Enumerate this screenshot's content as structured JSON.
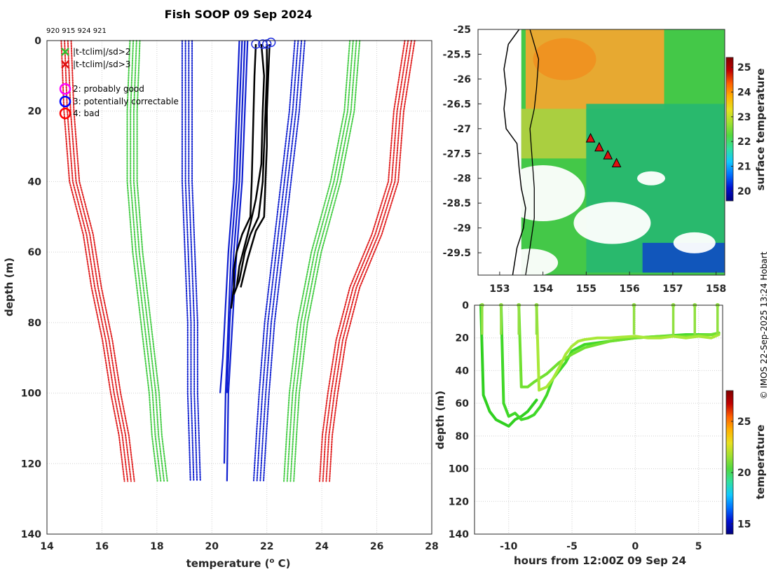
{
  "title": "Fish SOOP 09 Sep 2024",
  "profile_ids": "920 915 924 921",
  "credit": "© IMOS 22-Sep-2025 13:24 Hobart",
  "colors": {
    "red": "#e02020",
    "green": "#44cc44",
    "blue": "#1020d0",
    "black": "#000000",
    "magenta": "#ff00ff"
  },
  "legend": [
    {
      "symbol": "x",
      "color": "#30c030",
      "label": "|t-tclim|/sd>2"
    },
    {
      "symbol": "x",
      "color": "#e01010",
      "label": "|t-tclim|/sd>3"
    },
    {
      "symbol": "o",
      "color": "#ff00ff",
      "label": "2: probably good"
    },
    {
      "symbol": "o",
      "color": "#0000ff",
      "label": "3: potentially correctable"
    },
    {
      "symbol": "o",
      "color": "#ff0000",
      "label": "4: bad"
    }
  ],
  "chart_data": [
    {
      "id": "profiles",
      "type": "line",
      "xlabel": "temperature (",
      "xlabel_sup": "o",
      "xlabel_end": " C)",
      "ylabel": "depth (m)",
      "xlim": [
        14,
        28
      ],
      "ylim": [
        0,
        140
      ],
      "x_ticks": [
        14,
        16,
        18,
        20,
        22,
        24,
        26,
        28
      ],
      "y_ticks": [
        0,
        20,
        40,
        60,
        80,
        100,
        120,
        140
      ],
      "grid": true,
      "climatology_series": [
        {
          "name": "clim -3sd",
          "color": "#e02020",
          "style": "dotted",
          "depth": [
            0,
            20,
            40,
            55,
            70,
            85,
            100,
            112,
            125
          ],
          "temp": [
            14.7,
            14.8,
            15.0,
            15.5,
            15.8,
            16.2,
            16.5,
            16.8,
            17.0
          ]
        },
        {
          "name": "clim -2sd",
          "color": "#44cc44",
          "style": "dotted",
          "depth": [
            0,
            20,
            40,
            60,
            80,
            100,
            112,
            125
          ],
          "temp": [
            17.2,
            17.1,
            17.1,
            17.3,
            17.6,
            17.9,
            18.0,
            18.2
          ]
        },
        {
          "name": "clim -1sd",
          "color": "#1020d0",
          "style": "dotted",
          "depth": [
            0,
            20,
            40,
            60,
            80,
            100,
            112,
            125
          ],
          "temp": [
            19.1,
            19.1,
            19.1,
            19.2,
            19.3,
            19.3,
            19.35,
            19.4
          ]
        },
        {
          "name": "clim +1sd",
          "color": "#1020d0",
          "style": "dotted",
          "depth": [
            0,
            20,
            40,
            60,
            80,
            100,
            112,
            125
          ],
          "temp": [
            23.2,
            23.0,
            22.7,
            22.4,
            22.1,
            21.9,
            21.8,
            21.7
          ]
        },
        {
          "name": "clim +2sd",
          "color": "#44cc44",
          "style": "dotted",
          "depth": [
            0,
            20,
            40,
            60,
            80,
            100,
            112,
            125
          ],
          "temp": [
            25.2,
            25.0,
            24.5,
            23.8,
            23.3,
            23.0,
            22.9,
            22.8
          ]
        },
        {
          "name": "clim +3sd",
          "color": "#e02020",
          "style": "dotted",
          "depth": [
            0,
            10,
            20,
            40,
            55,
            70,
            85,
            100,
            112,
            125
          ],
          "temp": [
            27.2,
            27.0,
            26.8,
            26.6,
            26.0,
            25.2,
            24.7,
            24.4,
            24.2,
            24.1
          ]
        }
      ],
      "mean_series": [
        {
          "name": "mean 1",
          "color": "#1020d0",
          "depth": [
            0,
            20,
            40,
            60,
            75,
            90,
            100
          ],
          "temp": [
            21.0,
            20.9,
            20.8,
            20.6,
            20.5,
            20.4,
            20.3
          ]
        },
        {
          "name": "mean 2",
          "color": "#1020d0",
          "depth": [
            0,
            20,
            40,
            60,
            80,
            100,
            120
          ],
          "temp": [
            21.1,
            21.0,
            20.9,
            20.7,
            20.6,
            20.5,
            20.45
          ]
        },
        {
          "name": "mean 3",
          "color": "#1020d0",
          "depth": [
            0,
            20,
            40,
            60,
            80,
            100
          ],
          "temp": [
            21.2,
            21.1,
            21.0,
            20.8,
            20.65,
            20.55
          ]
        },
        {
          "name": "mean 4",
          "color": "#1020d0",
          "depth": [
            0,
            20,
            40,
            60,
            80,
            100,
            125
          ],
          "temp": [
            21.3,
            21.2,
            21.1,
            20.9,
            20.75,
            20.6,
            20.55
          ]
        }
      ],
      "observed_series": [
        {
          "name": "profile 920",
          "color": "#000000",
          "depth": [
            1,
            10,
            25,
            40,
            50,
            55,
            60,
            65,
            70,
            76
          ],
          "temp": [
            21.6,
            21.55,
            21.5,
            21.45,
            21.4,
            21.1,
            20.9,
            20.8,
            20.8,
            20.7
          ]
        },
        {
          "name": "profile 915",
          "color": "#000000",
          "depth": [
            1,
            10,
            20,
            35,
            45,
            52,
            58,
            64,
            70
          ],
          "temp": [
            21.8,
            21.9,
            21.85,
            21.8,
            21.6,
            21.4,
            21.2,
            21.0,
            20.9
          ]
        },
        {
          "name": "profile 924",
          "color": "#000000",
          "depth": [
            1,
            10,
            20,
            30,
            40,
            50,
            55,
            60,
            68,
            72
          ],
          "temp": [
            22.0,
            22.0,
            21.95,
            21.9,
            21.85,
            21.7,
            21.4,
            21.2,
            21.0,
            20.8
          ]
        },
        {
          "name": "profile 921",
          "color": "#000000",
          "depth": [
            1,
            10,
            20,
            30,
            40,
            50,
            54,
            62,
            70
          ],
          "temp": [
            22.1,
            22.05,
            22.0,
            22.0,
            21.95,
            21.9,
            21.6,
            21.3,
            21.05
          ]
        }
      ],
      "qc_flags": [
        {
          "temp": 21.6,
          "depth": 1,
          "flag": "3"
        },
        {
          "temp": 21.85,
          "depth": 1,
          "flag": "3"
        },
        {
          "temp": 22.0,
          "depth": 1,
          "flag": "3"
        },
        {
          "temp": 22.15,
          "depth": 0.5,
          "flag": "3"
        }
      ]
    },
    {
      "id": "sst-map",
      "type": "heatmap",
      "xlim": [
        152.5,
        158.2
      ],
      "ylim": [
        -29.95,
        -25
      ],
      "x_ticks": [
        153,
        154,
        155,
        156,
        157,
        158
      ],
      "y_ticks": [
        -25,
        -25.5,
        -26,
        -26.5,
        -27,
        -27.5,
        -28,
        -28.5,
        -29,
        -29.5
      ],
      "colorbar_label": "surface temperature",
      "colorbar_ticks": [
        20,
        21,
        22,
        23,
        24,
        25
      ],
      "colorbar_range": [
        19.6,
        25.4
      ],
      "regions": [
        {
          "name": "warm north",
          "color": "#f0a830",
          "lon": [
            153.6,
            156.8
          ],
          "lat": [
            -25,
            -26.6
          ]
        },
        {
          "name": "mid",
          "color": "#b0d040",
          "lon": [
            153.5,
            155.0
          ],
          "lat": [
            -26.6,
            -27.6
          ]
        },
        {
          "name": "cool southeast",
          "color": "#28b870",
          "lon": [
            155.0,
            158.2
          ],
          "lat": [
            -26.5,
            -29.9
          ]
        },
        {
          "name": "cold south",
          "color": "#1050c0",
          "lon": [
            156.3,
            158.2
          ],
          "lat": [
            -29.3,
            -29.9
          ]
        }
      ],
      "drop_locations": [
        {
          "lon": 155.1,
          "lat": -27.2
        },
        {
          "lon": 155.3,
          "lat": -27.38
        },
        {
          "lon": 155.5,
          "lat": -27.54
        },
        {
          "lon": 155.7,
          "lat": -27.7
        }
      ]
    },
    {
      "id": "depth-time",
      "type": "scatter",
      "xlabel": "hours from 12:00Z 09 Sep 24",
      "ylabel": "depth (m)",
      "xlim": [
        -12.7,
        6.9
      ],
      "ylim": [
        0,
        140
      ],
      "x_ticks": [
        -10,
        -5,
        0,
        5
      ],
      "y_ticks": [
        0,
        20,
        40,
        60,
        80,
        100,
        120,
        140
      ],
      "colorbar_label": "temperature",
      "colorbar_ticks": [
        15,
        20,
        25
      ],
      "colorbar_range": [
        14,
        28
      ],
      "tracks": [
        {
          "name": "dive 1",
          "color": "#30d020",
          "hours": [
            -12.2,
            -12.0,
            -11.5,
            -11.0,
            -10.5,
            -10.0,
            -9.5,
            -9.0,
            -8.5,
            -8.0,
            -7.8
          ],
          "depth": [
            0,
            55,
            65,
            70,
            72,
            74,
            70,
            68,
            65,
            60,
            58
          ]
        },
        {
          "name": "dive 2",
          "color": "#40d828",
          "hours": [
            -10.6,
            -10.4,
            -10.0,
            -9.5,
            -9.0,
            -8.5,
            -8.0,
            -7.5,
            -7.0,
            -6.5,
            -6.0,
            -5.5,
            -5.0,
            -4.0,
            -2.0,
            0,
            2,
            4,
            6,
            6.6
          ],
          "depth": [
            0,
            60,
            68,
            66,
            70,
            69,
            67,
            62,
            55,
            45,
            40,
            35,
            28,
            24,
            22,
            20,
            19,
            18,
            18,
            17
          ]
        },
        {
          "name": "dive 3",
          "color": "#70e030",
          "hours": [
            -9.2,
            -9.0,
            -8.5,
            -8.0,
            -7.0,
            -6.0,
            -5.0,
            -4.0,
            -3.0,
            -2.0,
            0,
            2,
            4,
            6,
            6.6
          ],
          "depth": [
            0,
            50,
            50,
            47,
            42,
            35,
            30,
            26,
            24,
            22,
            20,
            19,
            19,
            18,
            17
          ]
        },
        {
          "name": "dive 4",
          "color": "#a8e838",
          "hours": [
            -7.8,
            -7.6,
            -7.0,
            -6.5,
            -6.0,
            -5.5,
            -5.0,
            -4.5,
            -4.0,
            -3.0,
            -2.0,
            0,
            1,
            2,
            3,
            4,
            5,
            6,
            6.6
          ],
          "depth": [
            0,
            52,
            50,
            45,
            38,
            30,
            25,
            22,
            21,
            20,
            20,
            19,
            20,
            20,
            19,
            20,
            19,
            20,
            18
          ]
        }
      ],
      "surface_marks": [
        -12.1,
        -10.6,
        -9.2,
        -7.8,
        -0.1,
        3.0,
        4.7,
        6.5
      ]
    }
  ]
}
